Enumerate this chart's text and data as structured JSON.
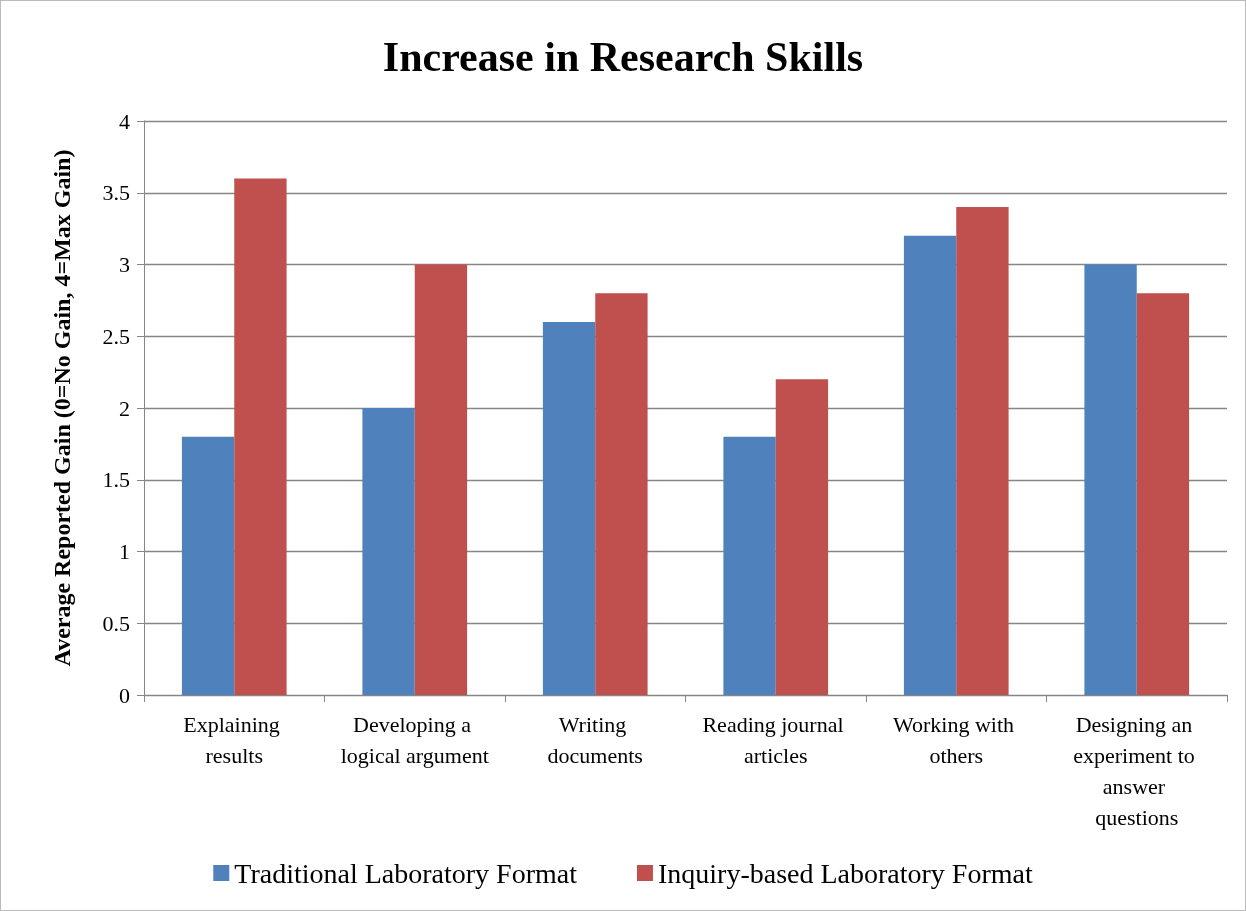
{
  "chart_data": {
    "type": "bar",
    "title": "Increase in Research Skills",
    "ylabel": "Average Reported Gain (0=No Gain, 4=Max Gain)",
    "categories": [
      "Explaining results",
      "Developing a logical argument",
      "Writing documents",
      "Reading journal articles",
      "Working with others",
      "Designing an experiment to answer questions"
    ],
    "series": [
      {
        "name": "Traditional Laboratory Format",
        "color": "#4f81bd",
        "values": [
          1.8,
          2.0,
          2.6,
          1.8,
          3.2,
          3.0
        ]
      },
      {
        "name": "Inquiry-based Laboratory Format",
        "color": "#c0504d",
        "values": [
          3.6,
          3.0,
          2.8,
          2.2,
          3.4,
          2.8
        ]
      }
    ],
    "ylim": [
      0,
      4
    ],
    "yticks": [
      0,
      0.5,
      1,
      1.5,
      2,
      2.5,
      3,
      3.5,
      4
    ],
    "grid": "y",
    "legend": "bottom"
  }
}
